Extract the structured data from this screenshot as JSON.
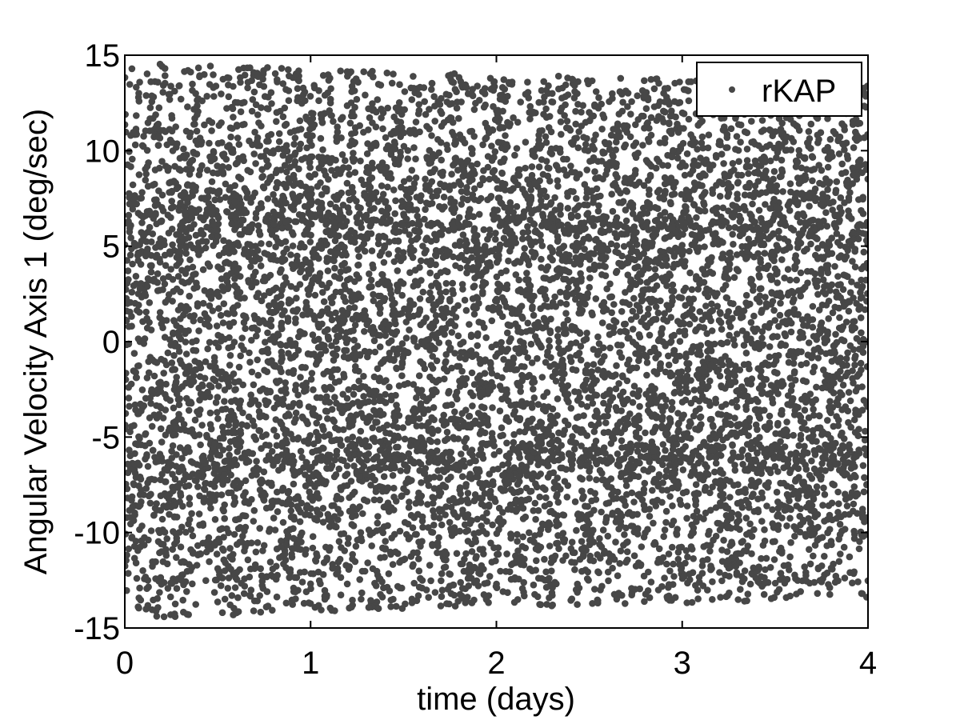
{
  "chart_data": {
    "type": "scatter",
    "title": "",
    "xlabel": "time (days)",
    "ylabel": "Angular Velocity Axis 1 (deg/sec)",
    "xlim": [
      0,
      4
    ],
    "ylim": [
      -15,
      15
    ],
    "xticks": [
      "0",
      "1",
      "2",
      "3",
      "4"
    ],
    "yticks": [
      "-15",
      "-10",
      "-5",
      "0",
      "5",
      "10",
      "15"
    ],
    "grid": false,
    "legend": {
      "position": "top-right",
      "entries": [
        "rKAP"
      ]
    },
    "series": [
      {
        "name": "rKAP",
        "color": "#474747",
        "marker": "dot",
        "description_envelope": [
          {
            "x": 0,
            "ymin": -14.5,
            "ymax": 14.6
          },
          {
            "x": 1,
            "ymin": -14.2,
            "ymax": 14.3
          },
          {
            "x": 2,
            "ymin": -13.9,
            "ymax": 14.0
          },
          {
            "x": 3,
            "ymin": -13.7,
            "ymax": 13.8
          },
          {
            "x": 4,
            "ymin": -13.4,
            "ymax": 13.6
          }
        ],
        "dense_bands": [
          -10,
          10
        ]
      }
    ]
  }
}
